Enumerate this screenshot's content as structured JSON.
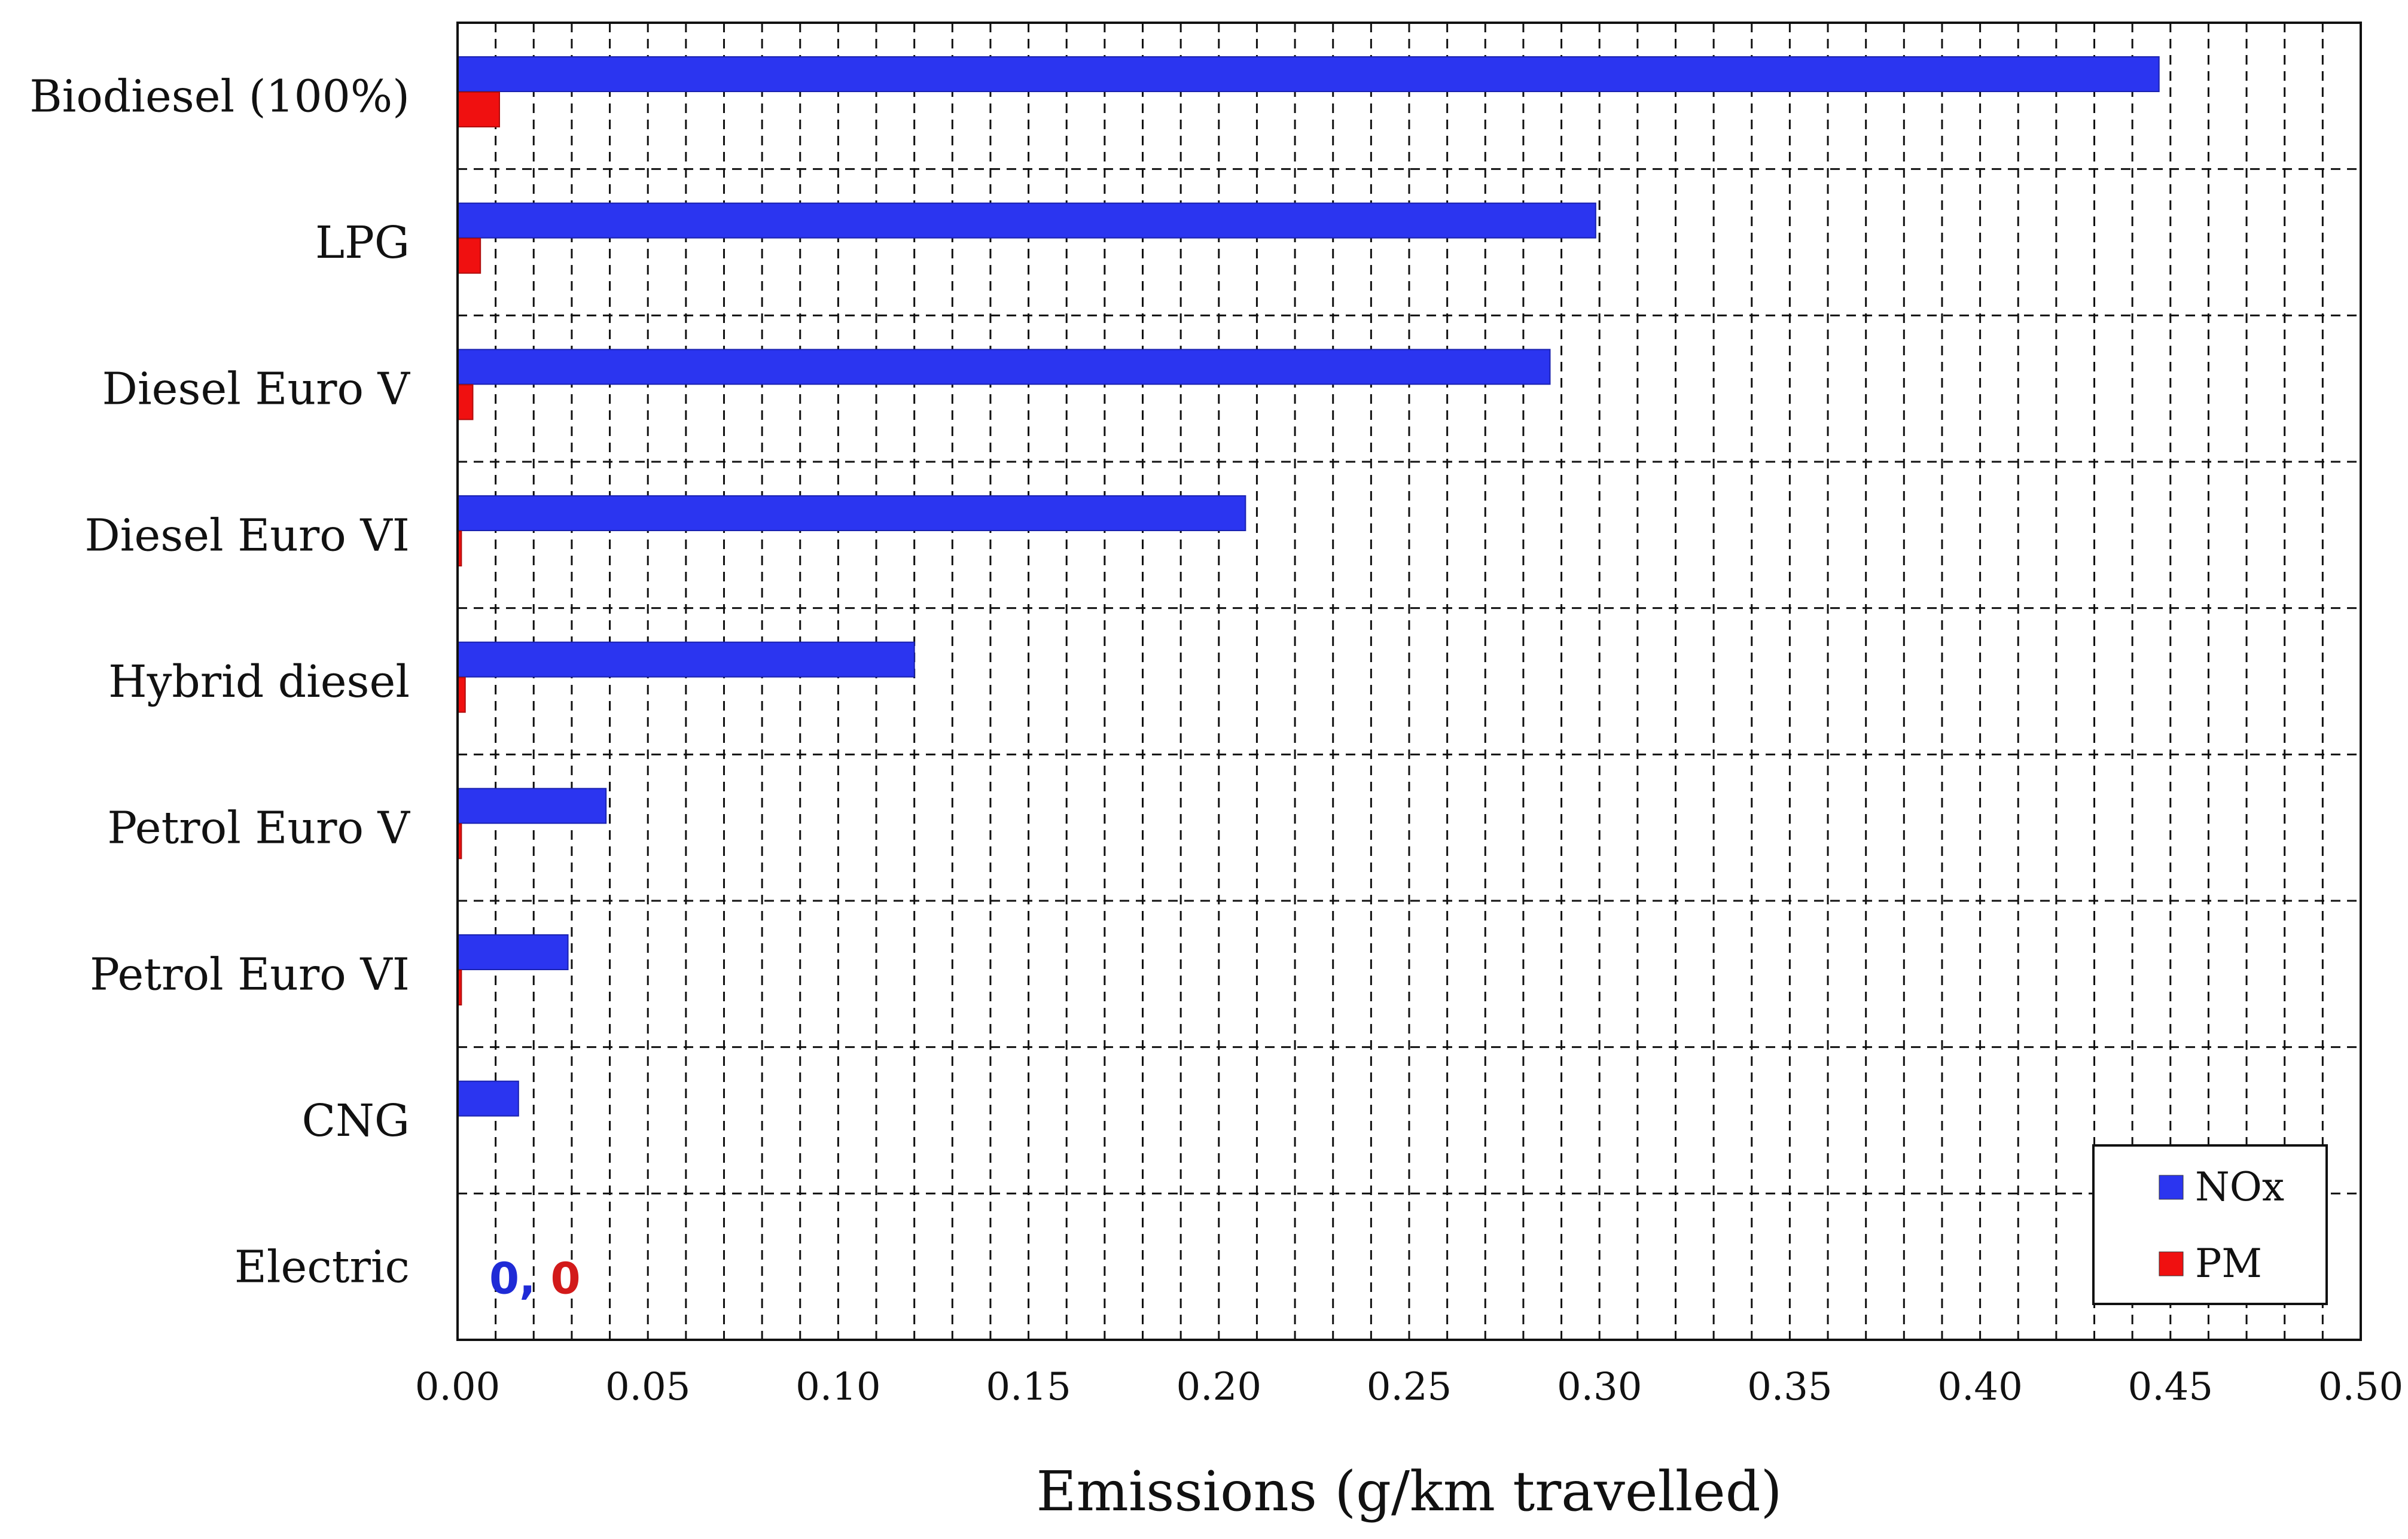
{
  "chart_data": {
    "type": "bar",
    "orientation": "horizontal",
    "title": "",
    "xlabel": "Emissions (g/km travelled)",
    "ylabel": "",
    "xlim": [
      0,
      0.5
    ],
    "x_ticks": [
      "0.00",
      "0.05",
      "0.10",
      "0.15",
      "0.20",
      "0.25",
      "0.30",
      "0.35",
      "0.40",
      "0.45",
      "0.50"
    ],
    "categories": [
      "Biodiesel (100%)",
      "LPG",
      "Diesel Euro V",
      "Diesel Euro VI",
      "Hybrid diesel",
      "Petrol Euro V",
      "Petrol Euro VI",
      "CNG",
      "Electric"
    ],
    "series": [
      {
        "name": "NOx",
        "color": "#2b35f0",
        "values": [
          0.447,
          0.299,
          0.287,
          0.207,
          0.12,
          0.039,
          0.029,
          0.016,
          0
        ]
      },
      {
        "name": "PM",
        "color": "#f01010",
        "values": [
          0.011,
          0.006,
          0.004,
          0.001,
          0.002,
          0.001,
          0.001,
          0,
          0
        ]
      }
    ],
    "grid": {
      "vertical": "dashed, every 0.01",
      "horizontal": "dashed, between categories"
    },
    "legend_position": "bottom-right",
    "annotation": {
      "category": "Electric",
      "parts": [
        {
          "text": "0,",
          "color": "#1f2bd6"
        },
        {
          "text": "0",
          "color": "#d21a1a"
        }
      ]
    }
  }
}
